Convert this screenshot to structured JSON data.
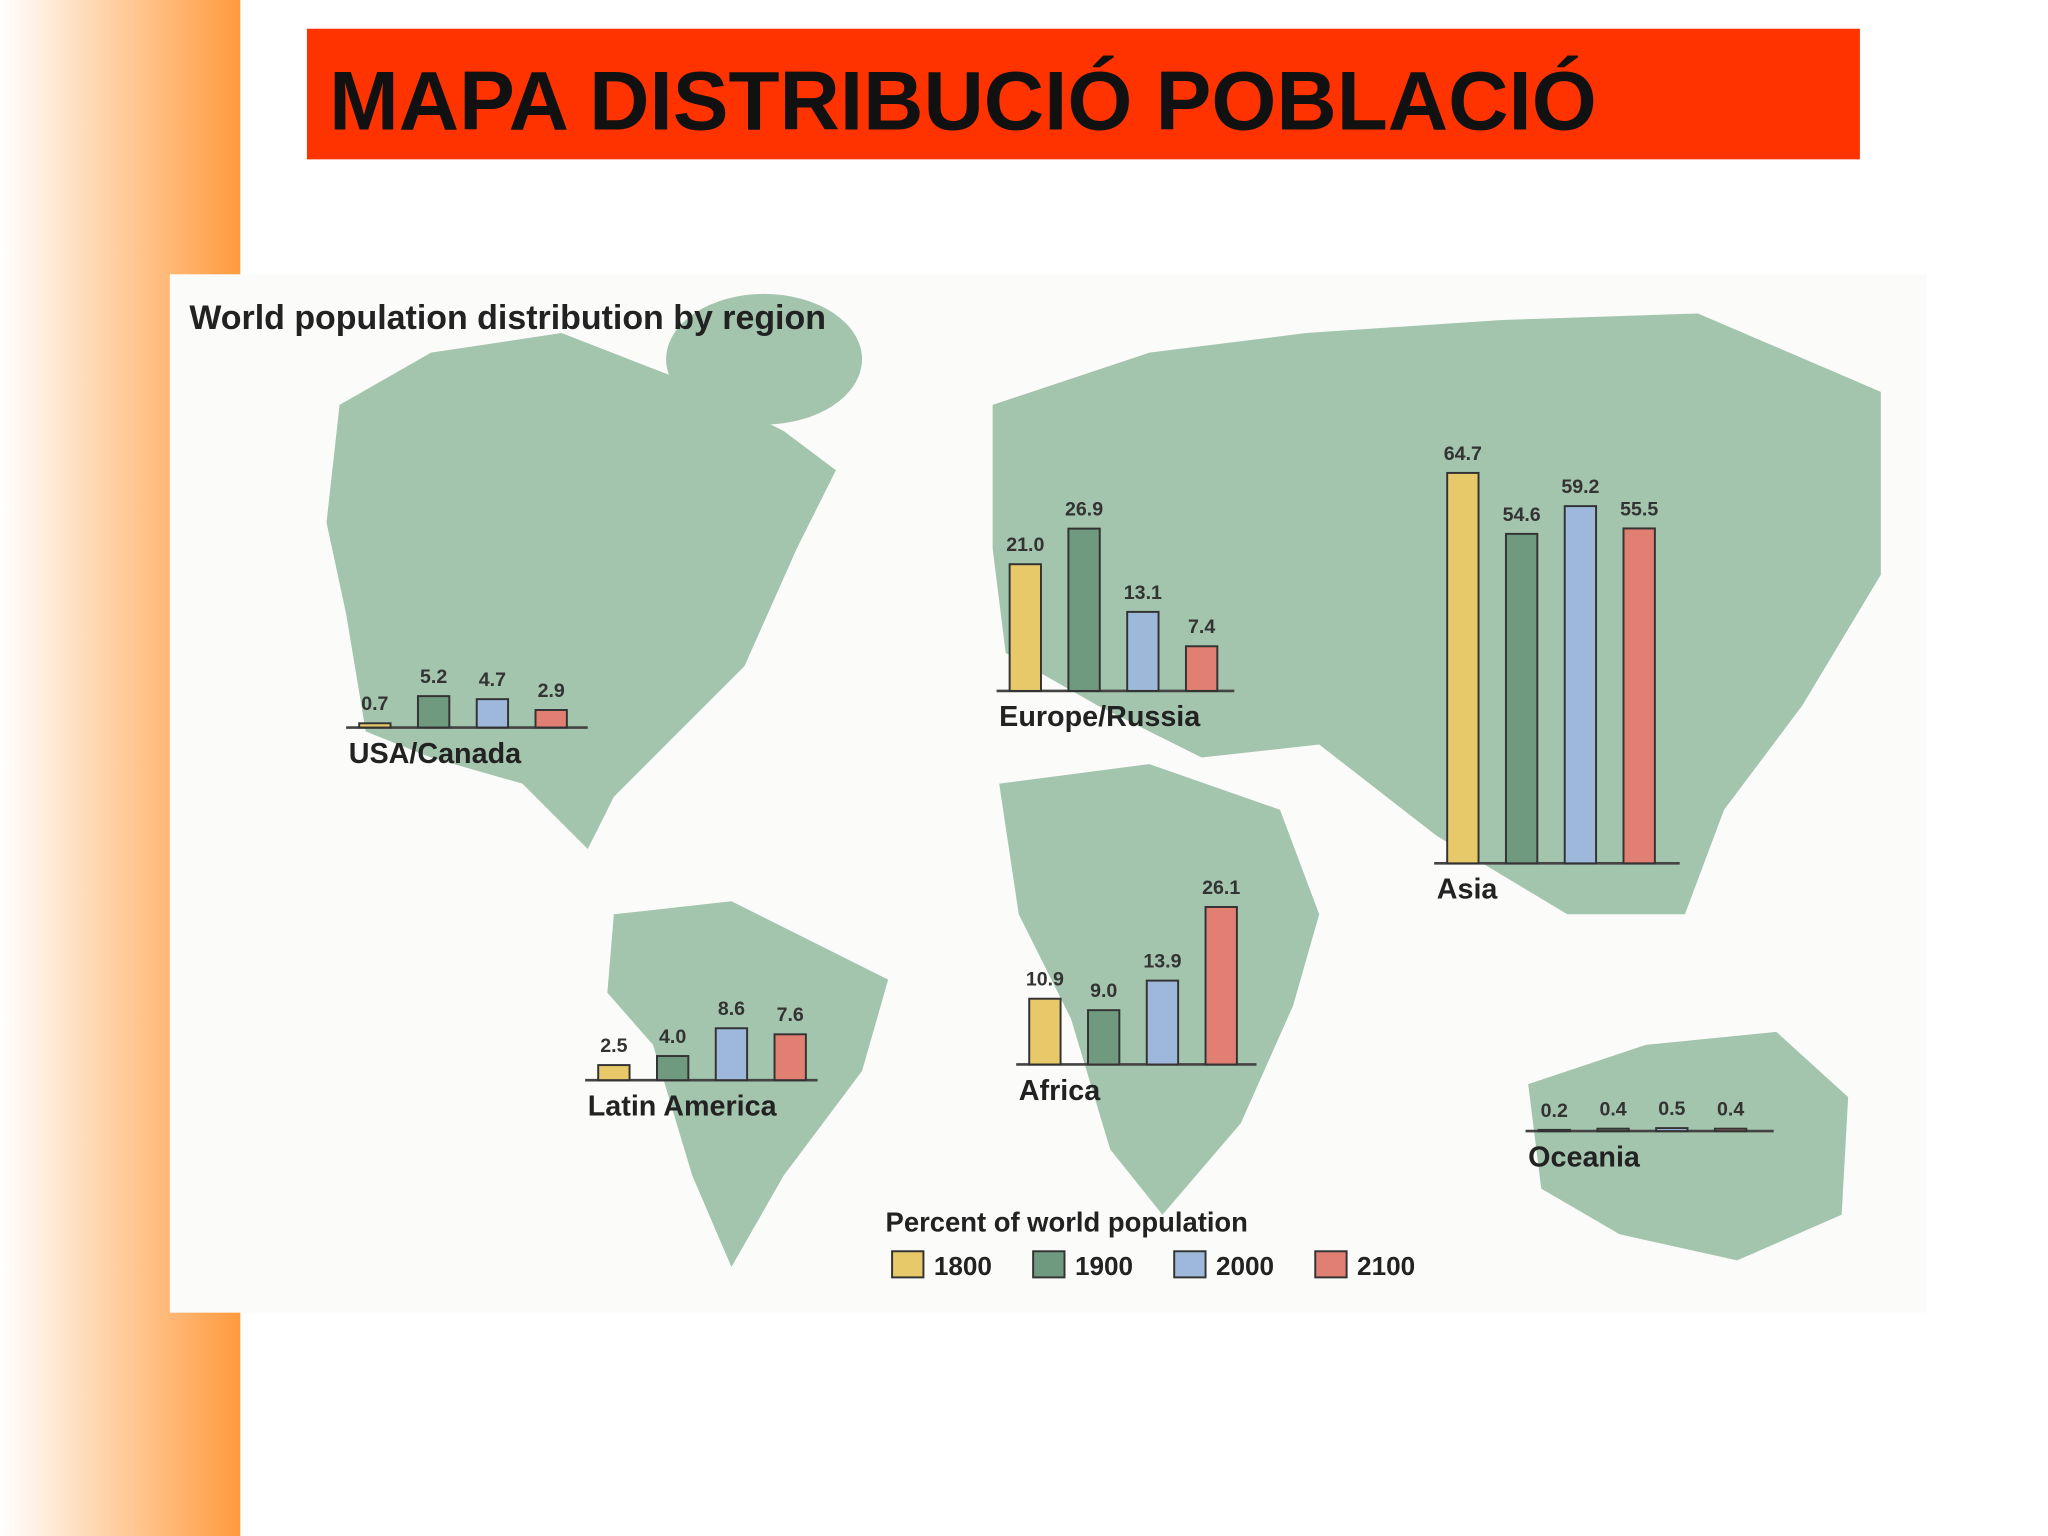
{
  "title": "MAPA DISTRIBUCIÓ POBLACIÓ",
  "chart_data": {
    "type": "bar",
    "title": "World population distribution by region",
    "legend_title": "Percent of world population",
    "categories": [
      "USA/Canada",
      "Latin America",
      "Europe/Russia",
      "Africa",
      "Asia",
      "Oceania"
    ],
    "series": [
      {
        "name": "1800",
        "color": "#e8c96a",
        "values": [
          0.7,
          2.5,
          21.0,
          10.9,
          64.7,
          0.2
        ],
        "value_labels": [
          "0.7",
          "2.5",
          "21.0",
          "10.9",
          "64.7",
          "0.2"
        ]
      },
      {
        "name": "1900",
        "color": "#6f9a80",
        "values": [
          5.2,
          4.0,
          26.9,
          9.0,
          54.6,
          0.4
        ],
        "value_labels": [
          "5.2",
          "4.0",
          "26.9",
          "9.0",
          "54.6",
          "0.4"
        ]
      },
      {
        "name": "2000",
        "color": "#9db8da",
        "values": [
          4.7,
          8.6,
          13.1,
          13.9,
          59.2,
          0.5
        ],
        "value_labels": [
          "4.7",
          "8.6",
          "13.1",
          "13.9",
          "59.2",
          "0.5"
        ]
      },
      {
        "name": "2100",
        "color": "#e07f72",
        "values": [
          2.9,
          7.6,
          7.4,
          26.1,
          55.5,
          0.4
        ],
        "value_labels": [
          "2.9",
          "7.6",
          "7.4",
          "26.1",
          "55.5",
          "0.4"
        ]
      }
    ]
  }
}
